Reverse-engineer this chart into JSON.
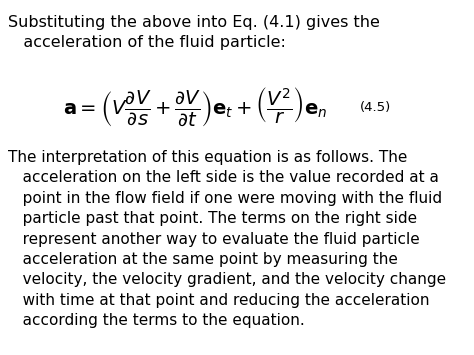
{
  "background_color": "#ffffff",
  "title_text": "Substituting the above into Eq. (4.1) gives the\n   acceleration of the fluid particle:",
  "equation_label": "(4.5)",
  "body_text": "The interpretation of this equation is as follows. The\n   acceleration on the left side is the value recorded at a\n   point in the flow field if one were moving with the fluid\n   particle past that point. The terms on the right side\n   represent another way to evaluate the fluid particle\n   acceleration at the same point by measuring the\n   velocity, the velocity gradient, and the velocity change\n   with time at that point and reducing the acceleration\n   according the terms to the equation.",
  "title_fontsize": 11.5,
  "body_fontsize": 11.0,
  "equation_fontsize": 14,
  "eq_label_fontsize": 9.5,
  "text_color": "#000000"
}
